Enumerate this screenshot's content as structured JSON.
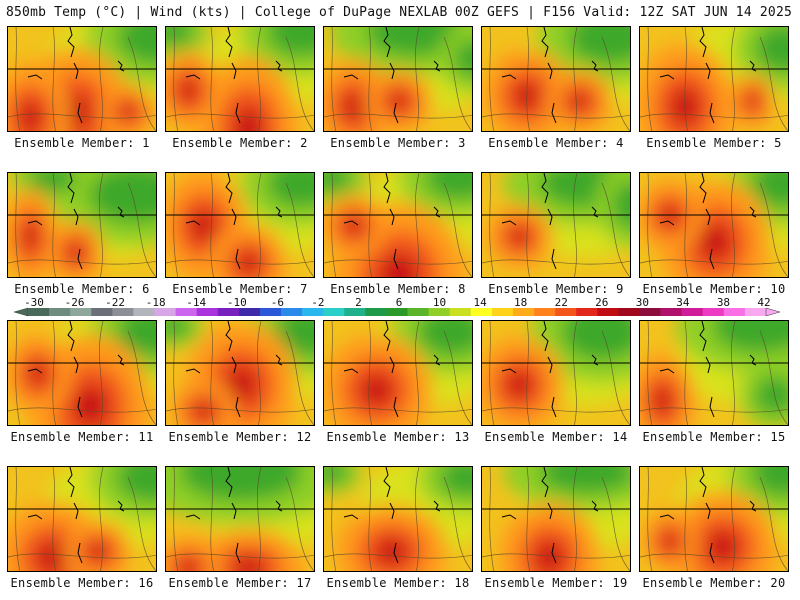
{
  "header": {
    "left": "850mb Temp (°C) | Wind (kts) | College of DuPage NEXLAB",
    "right": "00Z GEFS | F156 Valid: 12Z SAT JUN 14 2025"
  },
  "members": [
    {
      "label": "Ensemble Member: 1",
      "hot": [
        [
          0.45,
          0.8,
          0.5,
          0.8
        ],
        [
          0.15,
          0.85,
          0.35,
          0.7
        ],
        [
          0.8,
          0.8,
          0.25,
          0.35
        ]
      ],
      "cold": [
        [
          1.0,
          0.1,
          0.6,
          0.55
        ]
      ]
    },
    {
      "label": "Ensemble Member: 2",
      "hot": [
        [
          0.55,
          0.95,
          0.45,
          0.9
        ],
        [
          0.15,
          0.6,
          0.3,
          0.5
        ]
      ],
      "cold": [
        [
          0.9,
          0.05,
          0.5,
          0.5
        ],
        [
          0.05,
          0.05,
          0.3,
          0.3
        ]
      ]
    },
    {
      "label": "Ensemble Member: 3",
      "hot": [
        [
          0.2,
          0.75,
          0.35,
          0.6
        ],
        [
          0.5,
          0.7,
          0.3,
          0.4
        ]
      ],
      "cold": [
        [
          0.6,
          0.05,
          0.7,
          0.5
        ],
        [
          1.0,
          0.3,
          0.3,
          0.4
        ]
      ]
    },
    {
      "label": "Ensemble Member: 4",
      "hot": [
        [
          0.3,
          0.65,
          0.4,
          0.6
        ],
        [
          0.65,
          0.7,
          0.3,
          0.4
        ]
      ],
      "cold": [
        [
          0.85,
          0.1,
          0.6,
          0.55
        ]
      ]
    },
    {
      "label": "Ensemble Member: 5",
      "hot": [
        [
          0.3,
          0.75,
          0.45,
          0.8
        ],
        [
          0.75,
          0.7,
          0.2,
          0.35
        ]
      ],
      "cold": [
        [
          0.95,
          0.2,
          0.4,
          0.5
        ]
      ]
    },
    {
      "label": "Ensemble Member: 6",
      "hot": [
        [
          0.15,
          0.6,
          0.25,
          0.6
        ],
        [
          0.45,
          0.75,
          0.25,
          0.4
        ]
      ],
      "cold": [
        [
          0.85,
          0.2,
          0.7,
          0.6
        ],
        [
          0.3,
          0.05,
          0.35,
          0.3
        ]
      ]
    },
    {
      "label": "Ensemble Member: 7",
      "hot": [
        [
          0.25,
          0.5,
          0.4,
          0.7
        ],
        [
          0.55,
          0.85,
          0.35,
          0.5
        ]
      ],
      "cold": [
        [
          0.9,
          0.1,
          0.5,
          0.5
        ]
      ]
    },
    {
      "label": "Ensemble Member: 8",
      "hot": [
        [
          0.5,
          0.95,
          0.6,
          0.9
        ],
        [
          0.2,
          0.5,
          0.3,
          0.4
        ]
      ],
      "cold": [
        [
          0.9,
          0.05,
          0.5,
          0.45
        ],
        [
          0.05,
          0.05,
          0.3,
          0.3
        ]
      ]
    },
    {
      "label": "Ensemble Member: 9",
      "hot": [
        [
          0.25,
          0.6,
          0.3,
          0.4
        ]
      ],
      "cold": [
        [
          0.7,
          0.1,
          0.7,
          0.5
        ],
        [
          1.0,
          0.3,
          0.3,
          0.5
        ]
      ]
    },
    {
      "label": "Ensemble Member: 10",
      "hot": [
        [
          0.5,
          0.65,
          0.5,
          0.8
        ],
        [
          0.2,
          0.4,
          0.3,
          0.45
        ]
      ],
      "cold": [
        [
          0.95,
          0.1,
          0.45,
          0.5
        ]
      ]
    },
    {
      "label": "Ensemble Member: 11",
      "hot": [
        [
          0.55,
          0.8,
          0.55,
          0.9
        ],
        [
          0.2,
          0.5,
          0.3,
          0.5
        ]
      ],
      "cold": [
        [
          0.95,
          0.1,
          0.5,
          0.5
        ]
      ]
    },
    {
      "label": "Ensemble Member: 12",
      "hot": [
        [
          0.5,
          0.6,
          0.5,
          0.8
        ],
        [
          0.25,
          0.85,
          0.3,
          0.4
        ]
      ],
      "cold": [
        [
          0.95,
          0.1,
          0.5,
          0.5
        ],
        [
          0.05,
          0.05,
          0.25,
          0.25
        ]
      ]
    },
    {
      "label": "Ensemble Member: 13",
      "hot": [
        [
          0.35,
          0.65,
          0.5,
          0.7
        ]
      ],
      "cold": [
        [
          0.85,
          0.1,
          0.5,
          0.5
        ]
      ]
    },
    {
      "label": "Ensemble Member: 14",
      "hot": [
        [
          0.25,
          0.6,
          0.4,
          0.6
        ]
      ],
      "cold": [
        [
          0.8,
          0.1,
          0.6,
          0.6
        ]
      ]
    },
    {
      "label": "Ensemble Member: 15",
      "hot": [
        [
          0.15,
          0.75,
          0.3,
          0.6
        ]
      ],
      "cold": [
        [
          0.8,
          0.05,
          0.7,
          0.55
        ],
        [
          0.9,
          0.7,
          0.3,
          0.4
        ]
      ]
    },
    {
      "label": "Ensemble Member: 16",
      "hot": [
        [
          0.3,
          0.85,
          0.5,
          0.7
        ],
        [
          0.6,
          0.8,
          0.3,
          0.4
        ]
      ],
      "cold": [
        [
          0.95,
          0.1,
          0.5,
          0.5
        ]
      ]
    },
    {
      "label": "Ensemble Member: 17",
      "hot": [
        [
          0.55,
          0.95,
          0.5,
          0.5
        ],
        [
          0.15,
          0.95,
          0.3,
          0.4
        ]
      ],
      "cold": [
        [
          0.5,
          0.05,
          0.9,
          0.6
        ]
      ]
    },
    {
      "label": "Ensemble Member: 18",
      "hot": [
        [
          0.45,
          0.8,
          0.5,
          0.6
        ]
      ],
      "cold": [
        [
          0.95,
          0.1,
          0.4,
          0.4
        ],
        [
          0.05,
          0.05,
          0.25,
          0.25
        ]
      ]
    },
    {
      "label": "Ensemble Member: 19",
      "hot": [
        [
          0.45,
          0.85,
          0.45,
          0.7
        ]
      ],
      "cold": [
        [
          0.7,
          0.05,
          0.7,
          0.45
        ]
      ]
    },
    {
      "label": "Ensemble Member: 20",
      "hot": [
        [
          0.55,
          0.75,
          0.5,
          0.7
        ],
        [
          0.2,
          0.7,
          0.25,
          0.4
        ]
      ],
      "cold": [
        [
          0.95,
          0.05,
          0.45,
          0.5
        ]
      ]
    }
  ],
  "colorbar": {
    "ticks": [
      "-30",
      "-26",
      "-22",
      "-18",
      "-14",
      "-10",
      "-6",
      "-2",
      "2",
      "6",
      "10",
      "14",
      "18",
      "22",
      "26",
      "30",
      "34",
      "38",
      "42"
    ],
    "colors": [
      "#4a6a5a",
      "#6e8c7f",
      "#8ea69b",
      "#6b6f77",
      "#8d8f97",
      "#b4b4bc",
      "#d7a6e6",
      "#cc66ee",
      "#aa33dd",
      "#7a1fc0",
      "#3f2aa8",
      "#2a58d8",
      "#2a8be8",
      "#2ab7ee",
      "#2ad0c8",
      "#1fb08c",
      "#1f9a4a",
      "#2a9a2a",
      "#5ab52a",
      "#8fcf28",
      "#c8e020",
      "#ffff20",
      "#ffd21c",
      "#ffac1c",
      "#ff821c",
      "#f2561c",
      "#e2261c",
      "#c00c12",
      "#a0081c",
      "#8c0c3c",
      "#b0106c",
      "#d01c98",
      "#ec3cc4",
      "#f870e4",
      "#f8a8f0"
    ]
  }
}
